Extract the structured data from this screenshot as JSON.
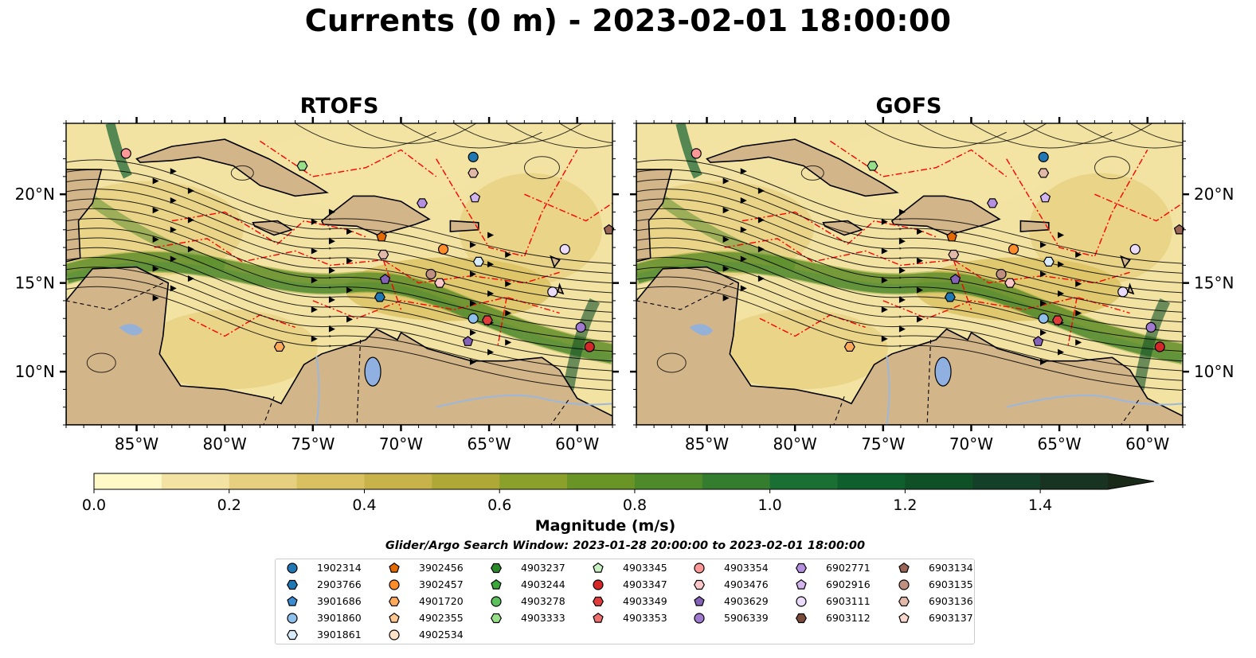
{
  "title": "Currents (0 m) - 2023-02-01 18:00:00",
  "panels": [
    {
      "title": "RTOFS"
    },
    {
      "title": "GOFS"
    }
  ],
  "map": {
    "lon_range": [
      -89,
      -58
    ],
    "lat_range": [
      7,
      24
    ],
    "lon_ticks": [
      "85°W",
      "80°W",
      "75°W",
      "70°W",
      "65°W",
      "60°W"
    ],
    "lat_ticks": [
      "20°N",
      "15°N",
      "10°N"
    ],
    "colors": {
      "land": "#d3b58a",
      "lakes": "#8fb0e0",
      "rivers": "#9cb7dc",
      "eez": "#ff0000",
      "streamlines": "#000000"
    }
  },
  "colorbar": {
    "label": "Magnitude (m/s)",
    "min": 0.0,
    "max": 1.5,
    "extend": "max",
    "ticks": [
      "0.0",
      "0.2",
      "0.4",
      "0.6",
      "0.8",
      "1.0",
      "1.2",
      "1.4"
    ],
    "colors": [
      "#fef9c7",
      "#f3e3a3",
      "#e6cf7f",
      "#d9c060",
      "#c8b24a",
      "#aea937",
      "#8ba02a",
      "#6a9426",
      "#4f8a2a",
      "#347d2e",
      "#1a6f33",
      "#0f5f2e",
      "#105027",
      "#14402a",
      "#183322"
    ]
  },
  "search_window": "Glider/Argo Search Window: 2023-01-28 20:00:00 to 2023-02-01 18:00:00",
  "legend": [
    {
      "id": "1902314",
      "marker": "circle",
      "color": "#1f77b4"
    },
    {
      "id": "2903766",
      "marker": "hexagon",
      "color": "#1f77b4"
    },
    {
      "id": "3901686",
      "marker": "pentagon",
      "color": "#3b8bd0"
    },
    {
      "id": "3901860",
      "marker": "circle",
      "color": "#8ec0eb"
    },
    {
      "id": "3901861",
      "marker": "hexagon",
      "color": "#d8ebfa"
    },
    {
      "id": "3902456",
      "marker": "pentagon",
      "color": "#e46a00"
    },
    {
      "id": "3902457",
      "marker": "circle",
      "color": "#ff8c2a"
    },
    {
      "id": "4901720",
      "marker": "hexagon",
      "color": "#ffaa5a"
    },
    {
      "id": "4902355",
      "marker": "pentagon",
      "color": "#ffc890"
    },
    {
      "id": "4902534",
      "marker": "circle",
      "color": "#ffe2c8"
    },
    {
      "id": "4903237",
      "marker": "hexagon",
      "color": "#2a8a2a"
    },
    {
      "id": "4903244",
      "marker": "pentagon",
      "color": "#3aa83a"
    },
    {
      "id": "4903278",
      "marker": "circle",
      "color": "#5cc15c"
    },
    {
      "id": "4903333",
      "marker": "hexagon",
      "color": "#98df8a"
    },
    {
      "id": "4903345",
      "marker": "pentagon",
      "color": "#c8f0c0"
    },
    {
      "id": "4903347",
      "marker": "circle",
      "color": "#d62728"
    },
    {
      "id": "4903349",
      "marker": "hexagon",
      "color": "#e03c3c"
    },
    {
      "id": "4903353",
      "marker": "pentagon",
      "color": "#f07070"
    },
    {
      "id": "4903354",
      "marker": "circle",
      "color": "#ff9896"
    },
    {
      "id": "4903476",
      "marker": "hexagon",
      "color": "#ffc8c8"
    },
    {
      "id": "4903629",
      "marker": "pentagon",
      "color": "#8462b8"
    },
    {
      "id": "5906339",
      "marker": "circle",
      "color": "#9f7ace"
    },
    {
      "id": "6902771",
      "marker": "hexagon",
      "color": "#b690e0"
    },
    {
      "id": "6902916",
      "marker": "pentagon",
      "color": "#d2b4ee"
    },
    {
      "id": "6903111",
      "marker": "circle",
      "color": "#eadcfa"
    },
    {
      "id": "6903112",
      "marker": "hexagon",
      "color": "#7a4a3a"
    },
    {
      "id": "6903134",
      "marker": "pentagon",
      "color": "#9a6555"
    },
    {
      "id": "6903135",
      "marker": "circle",
      "color": "#c09080"
    },
    {
      "id": "6903136",
      "marker": "hexagon",
      "color": "#e2b8a8"
    },
    {
      "id": "6903137",
      "marker": "pentagon",
      "color": "#f8d8cc"
    }
  ],
  "floats": [
    {
      "id": "4903354",
      "lon": -85.6,
      "lat": 22.3
    },
    {
      "id": "4903333",
      "lon": -75.6,
      "lat": 21.6
    },
    {
      "id": "1902314",
      "lon": -65.9,
      "lat": 22.1
    },
    {
      "id": "6903136",
      "lon": -65.9,
      "lat": 21.2
    },
    {
      "id": "6902916",
      "lon": -65.8,
      "lat": 19.8
    },
    {
      "id": "6902771",
      "lon": -68.8,
      "lat": 19.5
    },
    {
      "id": "6903134",
      "lon": -58.2,
      "lat": 18.0
    },
    {
      "id": "3902456",
      "lon": -71.1,
      "lat": 17.6
    },
    {
      "id": "3902457",
      "lon": -67.6,
      "lat": 16.9
    },
    {
      "id": "6903111",
      "lon": -60.7,
      "lat": 16.9
    },
    {
      "id": "6903136",
      "lon": -71.0,
      "lat": 16.6
    },
    {
      "id": "3901861",
      "lon": -65.6,
      "lat": 16.2
    },
    {
      "id": "6903135",
      "lon": -68.3,
      "lat": 15.5
    },
    {
      "id": "4903629",
      "lon": -70.9,
      "lat": 15.2
    },
    {
      "id": "4903476",
      "lon": -67.8,
      "lat": 15.0
    },
    {
      "id": "6903111",
      "lon": -61.4,
      "lat": 14.5
    },
    {
      "id": "2903766",
      "lon": -71.2,
      "lat": 14.2
    },
    {
      "id": "3901860",
      "lon": -65.9,
      "lat": 13.0
    },
    {
      "id": "4903349",
      "lon": -65.1,
      "lat": 12.9
    },
    {
      "id": "5906339",
      "lon": -59.8,
      "lat": 12.5
    },
    {
      "id": "4903629",
      "lon": -66.2,
      "lat": 11.7
    },
    {
      "id": "4901720",
      "lon": -76.9,
      "lat": 11.4
    },
    {
      "id": "4903347",
      "lon": -59.3,
      "lat": 11.4
    }
  ]
}
